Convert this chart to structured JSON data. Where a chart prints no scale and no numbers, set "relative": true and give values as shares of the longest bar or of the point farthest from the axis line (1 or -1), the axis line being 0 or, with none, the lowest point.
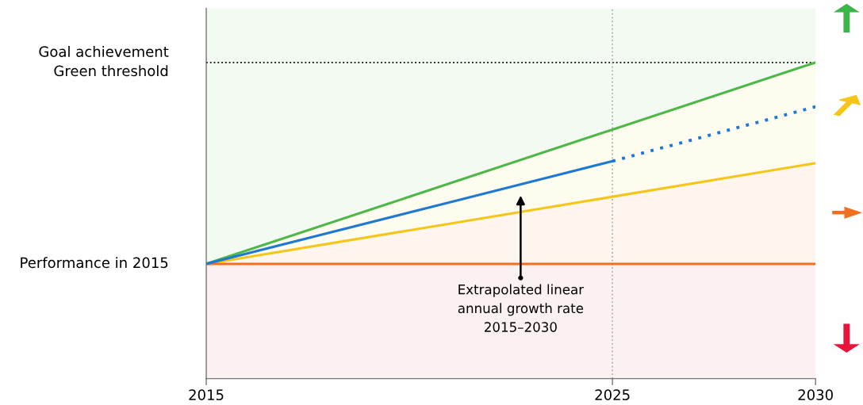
{
  "chart_data": {
    "type": "line",
    "x": [
      2015,
      2030
    ],
    "series": [
      {
        "color": "#4db848",
        "values": [
          0,
          1
        ],
        "lower": [
          0,
          1
        ],
        "upper": [
          1.27,
          1.27
        ]
      },
      {
        "color": "#f5c518",
        "values": [
          0,
          0.5
        ],
        "lower": [
          0,
          0.5
        ],
        "upper": [
          0,
          1
        ]
      },
      {
        "color": "#f26f21",
        "values": [
          0,
          0
        ],
        "lower": [
          0,
          0
        ],
        "upper": [
          0,
          0.5
        ]
      },
      {
        "color": "#1f78d1",
        "x": [
          2015,
          2025
        ],
        "values": [
          0,
          0.51
        ]
      },
      {
        "color": "#1f78d1",
        "x": [
          2025,
          2030
        ],
        "values": [
          0.51,
          0.78
        ],
        "line_style": "dotted"
      }
    ],
    "bands": [
      {
        "axis": "y",
        "from": -0.57,
        "to": 0,
        "color": "#fbf1f1"
      }
    ],
    "ref_lines": [
      {
        "axis": "y",
        "value": 1,
        "color": "#000000",
        "line_style": "dotted"
      },
      {
        "axis": "x",
        "value": 2025,
        "color": "#b0b0b0",
        "line_style": "dotted"
      }
    ],
    "annotations": [
      "Extrapolated linear\nannual growth rate\n2015–2030",
      {
        "text": "Performance in 2015",
        "x": 2015,
        "y": 0
      },
      {
        "text": "Goal achievement\nGreen threshold",
        "x": 2015,
        "y": 1
      }
    ],
    "xlim": [
      2015,
      2030
    ],
    "xticks": [
      2015,
      2025,
      2030
    ],
    "relative": true,
    "grid": false,
    "marker": "none",
    "line_style": "solid"
  }
}
